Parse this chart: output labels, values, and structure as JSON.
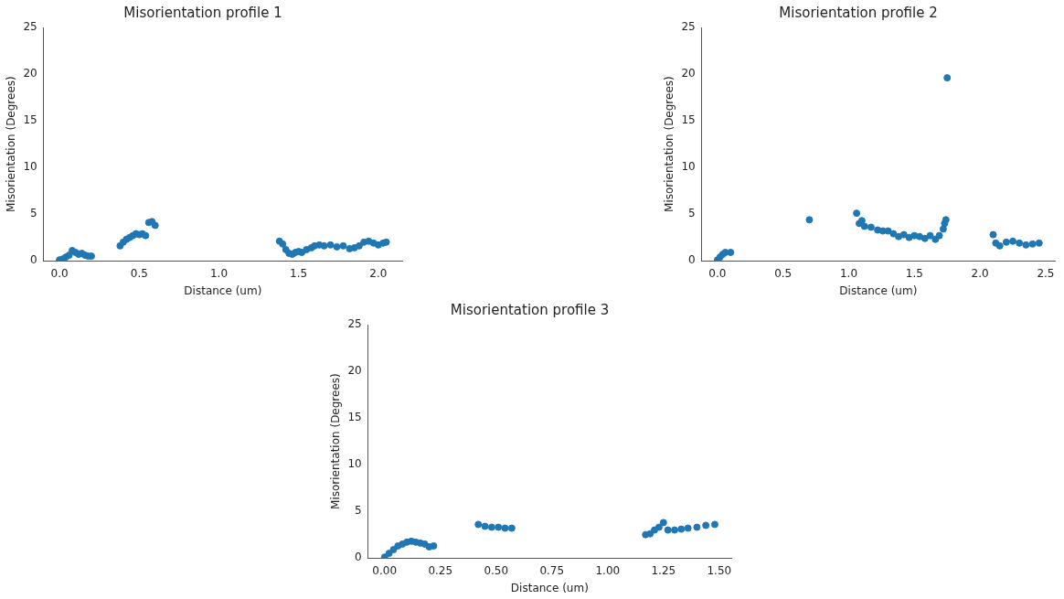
{
  "chart_data": [
    {
      "type": "scatter",
      "title": "Misorientation profile 1",
      "xlabel": "Distance (um)",
      "ylabel": "Misorientation (Degrees)",
      "xlim": [
        -0.1,
        2.15
      ],
      "ylim": [
        0,
        25
      ],
      "xticks": [
        {
          "value": 0,
          "label": "0.0"
        },
        {
          "value": 0.5,
          "label": "0.5"
        },
        {
          "value": 1,
          "label": "1.0"
        },
        {
          "value": 1.5,
          "label": "1.5"
        },
        {
          "value": 2,
          "label": "2.0"
        }
      ],
      "yticks": [
        0,
        5,
        10,
        15,
        20,
        25
      ],
      "grid": false,
      "legend": false,
      "marker": "circle",
      "series": [
        {
          "color": "#1f77b4",
          "x": [
            0.0,
            0.02,
            0.04,
            0.06,
            0.08,
            0.1,
            0.12,
            0.14,
            0.16,
            0.18,
            0.2,
            0.38,
            0.4,
            0.42,
            0.44,
            0.46,
            0.48,
            0.5,
            0.52,
            0.54,
            0.56,
            0.58,
            0.6,
            1.38,
            1.4,
            1.42,
            1.44,
            1.46,
            1.48,
            1.5,
            1.52,
            1.55,
            1.58,
            1.6,
            1.63,
            1.66,
            1.7,
            1.74,
            1.78,
            1.82,
            1.85,
            1.88,
            1.91,
            1.94,
            1.97,
            2.0,
            2.03,
            2.05
          ],
          "values": [
            0.1,
            0.2,
            0.4,
            0.6,
            1.1,
            0.9,
            0.7,
            0.8,
            0.6,
            0.5,
            0.5,
            1.6,
            2.0,
            2.3,
            2.5,
            2.7,
            2.9,
            2.8,
            2.9,
            2.7,
            4.1,
            4.2,
            3.8,
            2.1,
            1.8,
            1.2,
            0.8,
            0.7,
            0.9,
            1.0,
            0.9,
            1.2,
            1.4,
            1.6,
            1.7,
            1.6,
            1.7,
            1.5,
            1.6,
            1.3,
            1.4,
            1.6,
            2.0,
            2.1,
            1.9,
            1.7,
            1.9,
            2.0
          ]
        }
      ]
    },
    {
      "type": "scatter",
      "title": "Misorientation profile 2",
      "xlabel": "Distance (um)",
      "ylabel": "Misorientation (Degrees)",
      "xlim": [
        -0.12,
        2.57
      ],
      "ylim": [
        0,
        25
      ],
      "xticks": [
        {
          "value": 0,
          "label": "0.0"
        },
        {
          "value": 0.5,
          "label": "0.5"
        },
        {
          "value": 1,
          "label": "1.0"
        },
        {
          "value": 1.5,
          "label": "1.5"
        },
        {
          "value": 2,
          "label": "2.0"
        },
        {
          "value": 2.5,
          "label": "2.5"
        }
      ],
      "yticks": [
        0,
        5,
        10,
        15,
        20,
        25
      ],
      "grid": false,
      "legend": false,
      "marker": "circle",
      "series": [
        {
          "color": "#1f77b4",
          "x": [
            0.0,
            0.02,
            0.04,
            0.06,
            0.1,
            0.7,
            1.06,
            1.08,
            1.1,
            1.12,
            1.17,
            1.22,
            1.26,
            1.3,
            1.34,
            1.38,
            1.42,
            1.46,
            1.5,
            1.54,
            1.58,
            1.62,
            1.66,
            1.69,
            1.72,
            1.73,
            1.74,
            1.75,
            2.1,
            2.12,
            2.15,
            2.2,
            2.25,
            2.3,
            2.35,
            2.4,
            2.45
          ],
          "values": [
            0.1,
            0.4,
            0.7,
            0.9,
            0.9,
            4.4,
            5.1,
            4.0,
            4.3,
            3.7,
            3.6,
            3.3,
            3.2,
            3.2,
            2.9,
            2.6,
            2.8,
            2.5,
            2.7,
            2.6,
            2.4,
            2.7,
            2.3,
            2.7,
            3.4,
            4.0,
            4.4,
            19.6,
            2.8,
            1.9,
            1.6,
            2.0,
            2.1,
            1.9,
            1.7,
            1.8,
            1.9
          ]
        }
      ]
    },
    {
      "type": "scatter",
      "title": "Misorientation profile 3",
      "xlabel": "Distance (um)",
      "ylabel": "Misorientation (Degrees)",
      "xlim": [
        -0.074,
        1.554
      ],
      "ylim": [
        0,
        25
      ],
      "xticks": [
        {
          "value": 0,
          "label": "0.00"
        },
        {
          "value": 0.25,
          "label": "0.25"
        },
        {
          "value": 0.5,
          "label": "0.50"
        },
        {
          "value": 0.75,
          "label": "0.75"
        },
        {
          "value": 1,
          "label": "1.00"
        },
        {
          "value": 1.25,
          "label": "1.25"
        },
        {
          "value": 1.5,
          "label": "1.50"
        }
      ],
      "yticks": [
        0,
        5,
        10,
        15,
        20,
        25
      ],
      "grid": false,
      "legend": false,
      "marker": "circle",
      "series": [
        {
          "color": "#1f77b4",
          "x": [
            0.0,
            0.02,
            0.04,
            0.06,
            0.08,
            0.1,
            0.12,
            0.14,
            0.16,
            0.18,
            0.2,
            0.22,
            0.42,
            0.45,
            0.48,
            0.51,
            0.54,
            0.57,
            1.17,
            1.19,
            1.21,
            1.23,
            1.25,
            1.27,
            1.3,
            1.33,
            1.36,
            1.4,
            1.44,
            1.48
          ],
          "values": [
            0.1,
            0.5,
            0.9,
            1.3,
            1.5,
            1.7,
            1.8,
            1.7,
            1.6,
            1.5,
            1.2,
            1.3,
            3.6,
            3.4,
            3.3,
            3.3,
            3.2,
            3.2,
            2.5,
            2.6,
            3.0,
            3.3,
            3.8,
            3.0,
            3.0,
            3.1,
            3.2,
            3.3,
            3.5,
            3.6
          ]
        }
      ]
    }
  ]
}
